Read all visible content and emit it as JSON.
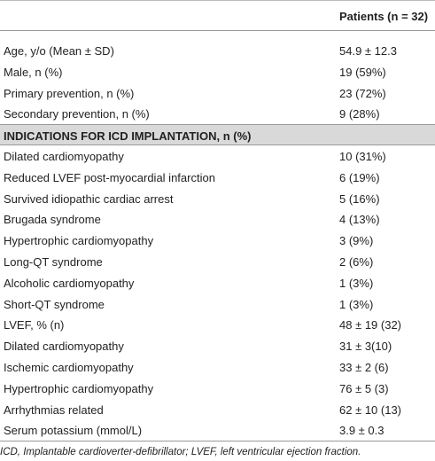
{
  "table": {
    "header": "Patients (n = 32)",
    "rows": [
      [
        "Age, y/o (Mean ± SD)",
        "54.9 ± 12.3"
      ],
      [
        "Male, n (%)",
        "19 (59%)"
      ],
      [
        "Primary prevention, n (%)",
        "23 (72%)"
      ],
      [
        "Secondary prevention, n (%)",
        "9 (28%)"
      ],
      [
        "INDICATIONS FOR ICD IMPLANTATION, n (%)"
      ],
      [
        "Dilated cardiomyopathy",
        "10 (31%)"
      ],
      [
        "Reduced LVEF post-myocardial infarction",
        "6 (19%)"
      ],
      [
        "Survived idiopathic cardiac arrest",
        "5 (16%)"
      ],
      [
        "Brugada syndrome",
        "4 (13%)"
      ],
      [
        "Hypertrophic cardiomyopathy",
        "3 (9%)"
      ],
      [
        "Long-QT syndrome",
        "2 (6%)"
      ],
      [
        "Alcoholic cardiomyopathy",
        "1 (3%)"
      ],
      [
        "Short-QT syndrome",
        "1 (3%)"
      ],
      [
        "LVEF, % (n)",
        "48 ± 19 (32)"
      ],
      [
        "Dilated cardiomyopathy",
        "31 ± 3(10)"
      ],
      [
        "Ischemic cardiomyopathy",
        "33 ± 2 (6)"
      ],
      [
        "Hypertrophic cardiomyopathy",
        "76 ± 5 (3)"
      ],
      [
        "Arrhythmias related",
        "62 ± 10 (13)"
      ],
      [
        "Serum potassium (mmol/L)",
        "3.9 ± 0.3"
      ]
    ],
    "footnote": "ICD, Implantable cardioverter-defibrillator; LVEF, left ventricular ejection fraction."
  }
}
